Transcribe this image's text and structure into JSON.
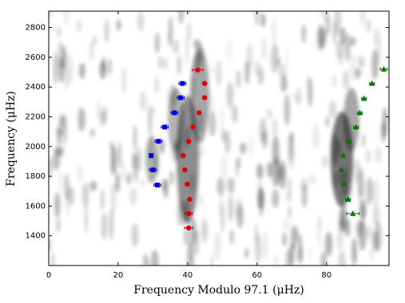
{
  "chart_data": {
    "type": "scatter",
    "xlabel": "Frequency Modulo 97.1 (μHz)",
    "ylabel": "Frequency (μHz)",
    "xlim": [
      0,
      98
    ],
    "ylim": [
      1200,
      2910
    ],
    "xticks": [
      0,
      20,
      40,
      60,
      80
    ],
    "yticks": [
      1400,
      1600,
      1800,
      2000,
      2200,
      2400,
      2600,
      2800
    ],
    "series": [
      {
        "color": "#0000dd",
        "marker": "square",
        "x": [
          38.5,
          38.0,
          36.2,
          33.4,
          31.6,
          29.5,
          30.0,
          31.3
        ],
        "values": [
          2424,
          2328,
          2227,
          2131,
          2035,
          1939,
          1843,
          1741
        ],
        "xerr": [
          1.0,
          1.0,
          1.0,
          1.0,
          1.0,
          0.5,
          1.0,
          1.0
        ]
      },
      {
        "color": "#dd0000",
        "marker": "circle",
        "x": [
          42.9,
          44.9,
          44.9,
          43.3,
          41.5,
          40.3,
          38.7,
          39.2,
          39.9,
          40.6,
          40.3,
          40.3
        ],
        "values": [
          2515,
          2424,
          2328,
          2227,
          2131,
          2035,
          1939,
          1843,
          1747,
          1645,
          1549,
          1453
        ],
        "xerr": [
          1.5,
          0.5,
          0.5,
          0.5,
          0.5,
          0.5,
          0.5,
          0.5,
          0.5,
          0.5,
          1.0,
          1.2
        ]
      },
      {
        "color": "#007700",
        "marker": "triangle",
        "x": [
          96.5,
          93.1,
          90.8,
          89.6,
          88.5,
          86.4,
          84.8,
          84.3,
          85.0,
          86.2,
          87.6
        ],
        "values": [
          2520,
          2424,
          2323,
          2227,
          2131,
          2035,
          1939,
          1843,
          1747,
          1645,
          1549
        ],
        "xerr": [
          1.0,
          0.7,
          0.7,
          0.7,
          0.7,
          0.7,
          0.5,
          0.5,
          0.7,
          0.7,
          1.8
        ]
      }
    ]
  }
}
